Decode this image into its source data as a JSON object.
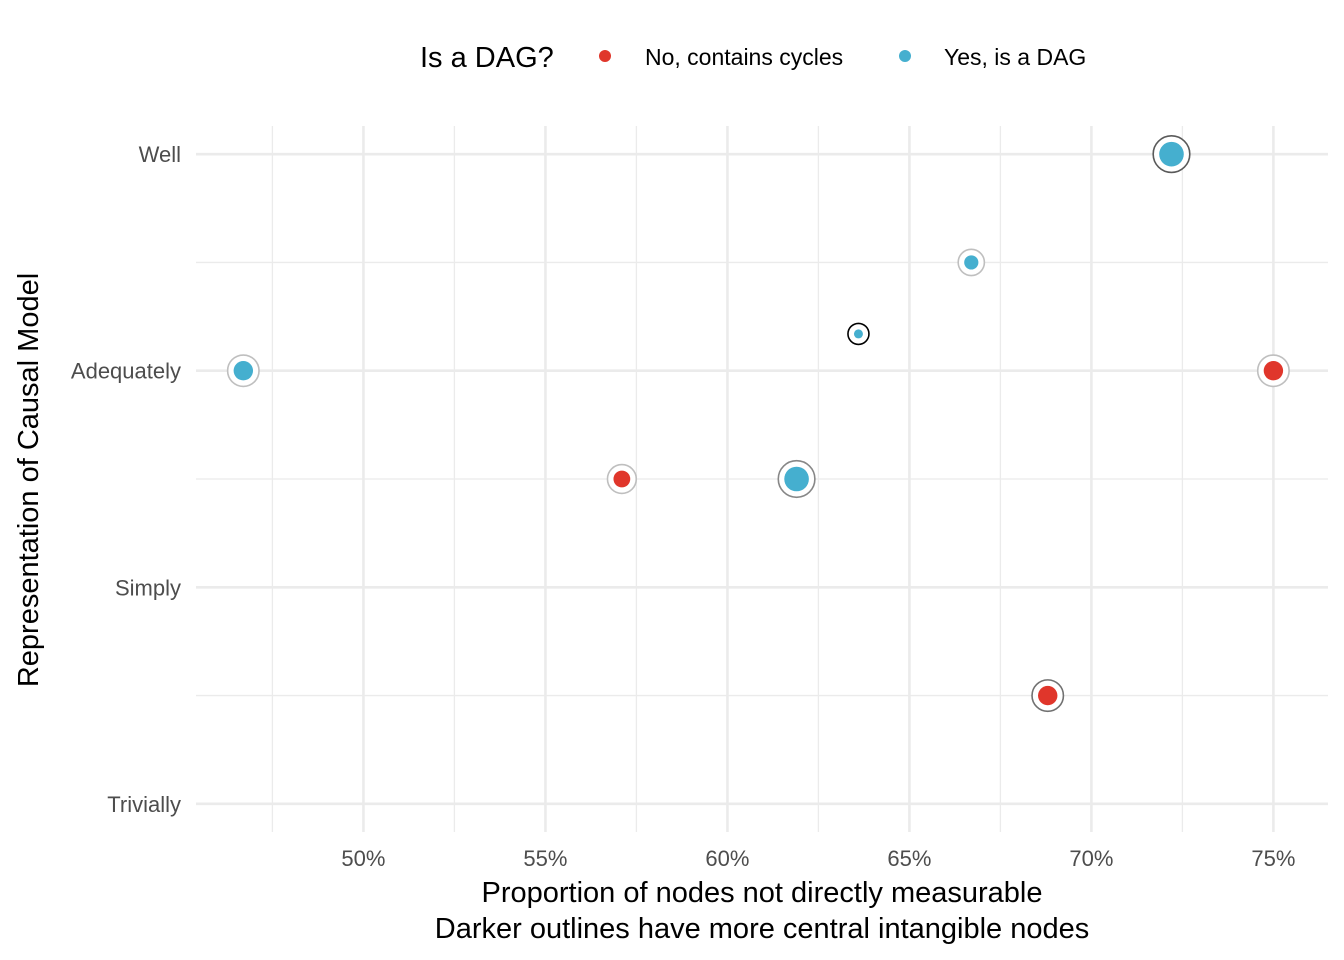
{
  "chart_data": {
    "type": "scatter",
    "legend": {
      "title": "Is a DAG?",
      "position": "top",
      "entries": [
        {
          "label": "No, contains cycles",
          "color": "#e0362b"
        },
        {
          "label": "Yes, is a DAG",
          "color": "#45afcf"
        }
      ]
    },
    "xlabel": "Proportion of nodes not directly measurable",
    "caption": "Darker outlines have more central intangible nodes",
    "ylabel": "Representation of Causal Model",
    "x_unit": "%",
    "xlim": [
      45.4,
      76.5
    ],
    "x_ticks": [
      {
        "value": 50,
        "label": "50%"
      },
      {
        "value": 55,
        "label": "55%"
      },
      {
        "value": 60,
        "label": "60%"
      },
      {
        "value": 65,
        "label": "65%"
      },
      {
        "value": 70,
        "label": "70%"
      },
      {
        "value": 75,
        "label": "75%"
      }
    ],
    "y_categories": [
      "Trivially",
      "Simply",
      "Adequately",
      "Well"
    ],
    "ylim": [
      0.87,
      4.13
    ],
    "grid": true,
    "points": [
      {
        "x": 72.2,
        "y": 4.0,
        "group": "Yes, is a DAG",
        "size": 3,
        "outline": 0.6
      },
      {
        "x": 66.7,
        "y": 3.5,
        "group": "Yes, is a DAG",
        "size": 1,
        "outline": 0.15
      },
      {
        "x": 63.6,
        "y": 3.17,
        "group": "Yes, is a DAG",
        "size": 0,
        "outline": 1.0
      },
      {
        "x": 46.7,
        "y": 3.0,
        "group": "Yes, is a DAG",
        "size": 2,
        "outline": 0.15
      },
      {
        "x": 75.0,
        "y": 3.0,
        "group": "No, contains cycles",
        "size": 2,
        "outline": 0.15
      },
      {
        "x": 57.1,
        "y": 2.5,
        "group": "No, contains cycles",
        "size": 1.5,
        "outline": 0.15
      },
      {
        "x": 61.9,
        "y": 2.5,
        "group": "Yes, is a DAG",
        "size": 3,
        "outline": 0.4
      },
      {
        "x": 68.8,
        "y": 1.5,
        "group": "No, contains cycles",
        "size": 2,
        "outline": 0.5
      }
    ]
  }
}
